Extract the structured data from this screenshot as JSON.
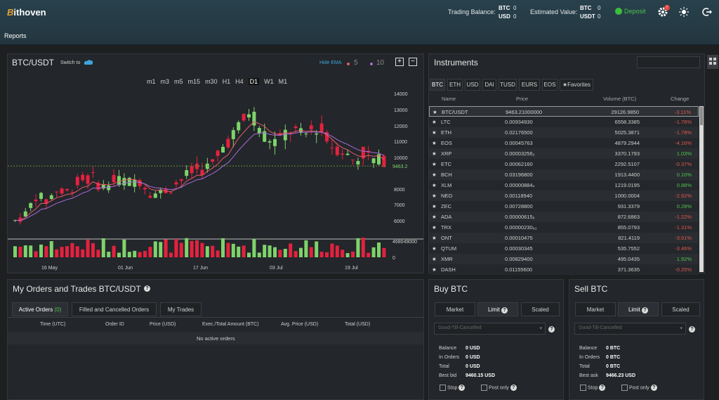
{
  "header": {
    "brand_mark": "B",
    "brand_text": "ithoven",
    "trading_balance_label": "Trading Balance:",
    "trading_balance": [
      {
        "cur": "BTC",
        "val": "0"
      },
      {
        "cur": "USD",
        "val": "0"
      }
    ],
    "estimated_value_label": "Estimated Value:",
    "estimated_value": [
      {
        "cur": "BTC",
        "val": "0"
      },
      {
        "cur": "USDT",
        "val": "0"
      }
    ],
    "deposit_label": "Deposit",
    "notification_badge": "!",
    "nav_reports": "Reports"
  },
  "chart_panel": {
    "pair": "BTC/USDT",
    "switch_to": "Switch to",
    "hide_ema": "Hide EMA",
    "ema_short": "5",
    "ema_long": "10",
    "zoom_in": "+",
    "zoom_out": "−",
    "timeframes": [
      "m1",
      "m3",
      "m5",
      "m15",
      "m30",
      "H1",
      "H4",
      "D1",
      "W1",
      "M1"
    ],
    "active_timeframe": "D1",
    "last_price_label": "9463.2",
    "volume_max_label": "468049000",
    "volume_zero_label": "0",
    "colors": {
      "up": "#7ed36b",
      "down": "#e5213f",
      "ema_short": "#e55b6b",
      "ema_long": "#a46bd8"
    }
  },
  "chart_data": {
    "type": "candlestick",
    "y_ticks": [
      14000,
      13000,
      12000,
      11000,
      10000,
      8000,
      7000,
      6000
    ],
    "x_ticks": [
      "16 May",
      "01 Jun",
      "17 Jun",
      "03 Jul",
      "19 Jul"
    ],
    "last_price": 9463.2
  },
  "instruments": {
    "title": "Instruments",
    "tabs": [
      "BTC",
      "ETH",
      "USD",
      "DAI",
      "TUSD",
      "EURS",
      "EOS",
      "Favorites"
    ],
    "active_tab": "BTC",
    "columns": [
      "Name",
      "Price",
      "Volume (BTC)",
      "Change"
    ],
    "rows": [
      {
        "name": "BTC/USDT",
        "price": "9463.21000000",
        "volume": "29126.9850",
        "change": "-3.11%"
      },
      {
        "name": "LTC",
        "price": "0.00934930",
        "volume": "6558.3385",
        "change": "-1.78%"
      },
      {
        "name": "ETH",
        "price": "0.02176500",
        "volume": "5025.3871",
        "change": "-1.78%"
      },
      {
        "name": "EOS",
        "price": "0.00045763",
        "volume": "4879.2944",
        "change": "-4.16%"
      },
      {
        "name": "XRP",
        "price": "0.00003256₂",
        "volume": "3370.1793",
        "change": "1.03%"
      },
      {
        "name": "ETC",
        "price": "0.00062160",
        "volume": "2292.5107",
        "change": "-0.37%"
      },
      {
        "name": "BCH",
        "price": "0.03196800",
        "volume": "1913.4400",
        "change": "0.10%"
      },
      {
        "name": "XLM",
        "price": "0.00000884₄",
        "volume": "1219.0195",
        "change": "0.88%"
      },
      {
        "name": "NEO",
        "price": "0.00118940",
        "volume": "1000.0004",
        "change": "-2.92%"
      },
      {
        "name": "ZEC",
        "price": "0.00728800",
        "volume": "931.3379",
        "change": "0.28%"
      },
      {
        "name": "ADA",
        "price": "0.00000615₆",
        "volume": "872.6863",
        "change": "-1.22%"
      },
      {
        "name": "TRX",
        "price": "0.00000230₈₂",
        "volume": "855.0793",
        "change": "-1.31%"
      },
      {
        "name": "ONT",
        "price": "0.00010475",
        "volume": "821.4119",
        "change": "-3.61%"
      },
      {
        "name": "QTUM",
        "price": "0.00030345",
        "volume": "535.7552",
        "change": "-3.46%"
      },
      {
        "name": "XMR",
        "price": "0.00829400",
        "volume": "495.0435",
        "change": "1.92%"
      },
      {
        "name": "DASH",
        "price": "0.01155600",
        "volume": "371.3635",
        "change": "-0.25%"
      }
    ]
  },
  "orders": {
    "title": "My Orders and Trades BTC/USDT",
    "tabs": [
      "Active Orders",
      "Filled and Cancelled Orders",
      "My Trades"
    ],
    "active_count": "(0)",
    "columns": [
      "Time (UTC)",
      "Order ID",
      "Price (USD)",
      "Exec./Total Amount (BTC)",
      "Avg. Price (USD)",
      "Total (USD)"
    ],
    "empty": "No active orders"
  },
  "buy": {
    "title": "Buy BTC",
    "tabs": [
      "Market",
      "Limit",
      "Scaled"
    ],
    "active_tab": "Limit",
    "select_value": "Good-Till-Cancelled",
    "balance_label": "Balance",
    "balance": "0 USD",
    "in_orders_label": "In Orders",
    "in_orders": "0 USD",
    "total_label": "Total",
    "total": "0 USD",
    "best_label": "Best bid",
    "best": "9460.15 USD",
    "stop_label": "Stop",
    "post_only_label": "Post only"
  },
  "sell": {
    "title": "Sell BTC",
    "tabs": [
      "Market",
      "Limit",
      "Scaled"
    ],
    "active_tab": "Limit",
    "select_value": "Good-Till-Cancelled",
    "balance_label": "Balance",
    "balance": "0 BTC",
    "in_orders_label": "In Orders",
    "in_orders": "0 BTC",
    "total_label": "Total",
    "total": "0 BTC",
    "best_label": "Best ask",
    "best": "9466.23 USD",
    "stop_label": "Stop",
    "post_only_label": "Post only"
  }
}
